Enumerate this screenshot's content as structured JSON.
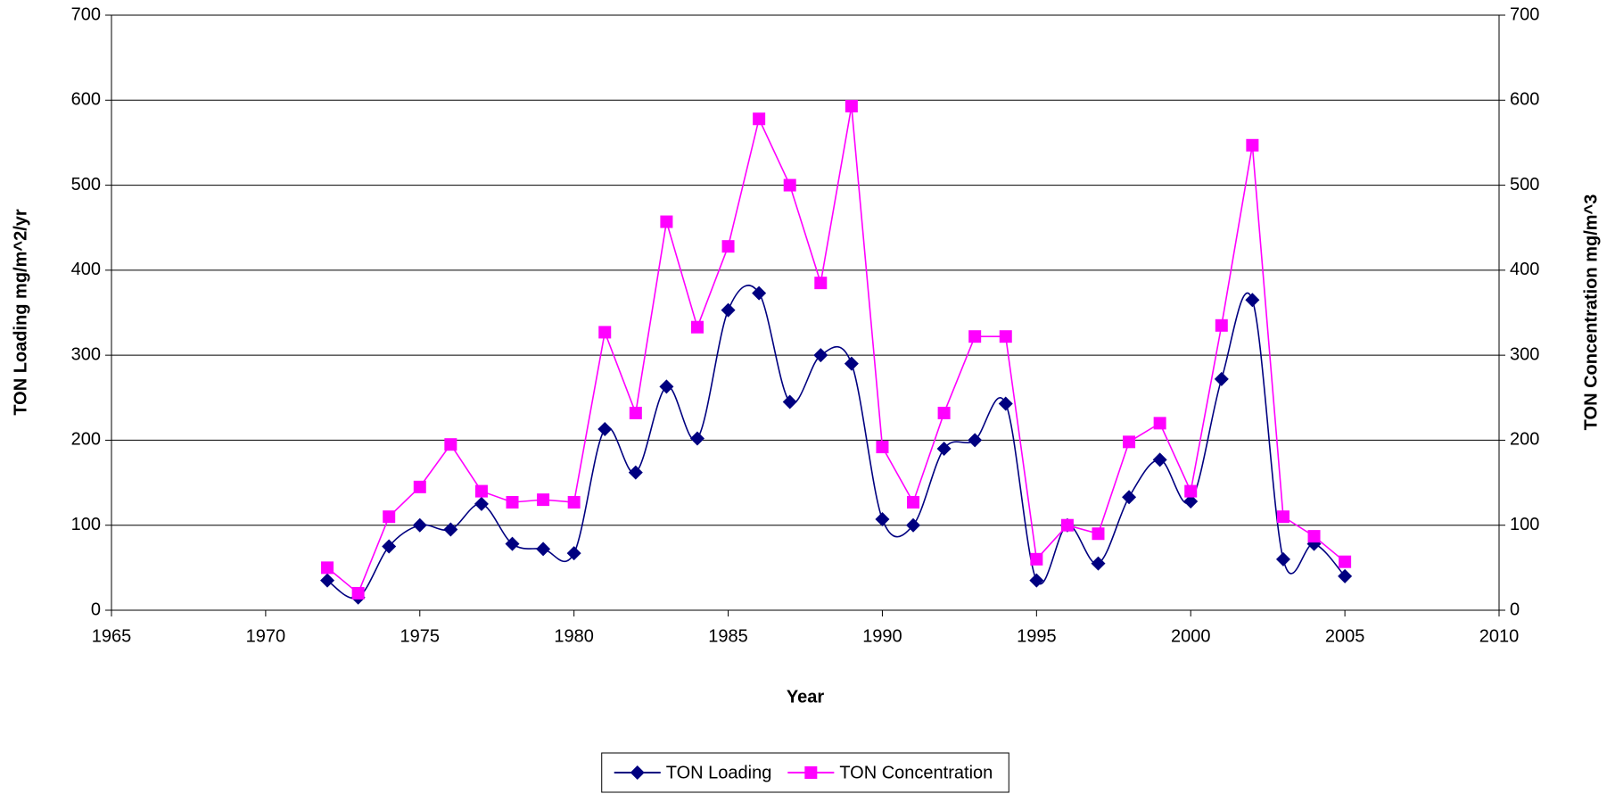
{
  "chart_data": {
    "type": "line",
    "x_label": "Year",
    "y_label": "TON Loading mg/m^2/yr",
    "y2_label": "TON Concentration mg/m^3",
    "x": [
      1972,
      1973,
      1974,
      1975,
      1976,
      1977,
      1978,
      1979,
      1980,
      1981,
      1982,
      1983,
      1984,
      1985,
      1986,
      1987,
      1988,
      1989,
      1990,
      1991,
      1992,
      1993,
      1994,
      1995,
      1996,
      1997,
      1998,
      1999,
      2000,
      2001,
      2002,
      2003,
      2004,
      2005
    ],
    "series": [
      {
        "name": "TON Loading",
        "color": "#000080",
        "marker": "diamond",
        "smooth": true,
        "values": [
          35,
          15,
          75,
          100,
          95,
          125,
          78,
          72,
          67,
          213,
          162,
          263,
          202,
          353,
          373,
          245,
          300,
          290,
          107,
          100,
          190,
          200,
          243,
          35,
          100,
          55,
          133,
          177,
          128,
          272,
          365,
          60,
          78,
          40
        ]
      },
      {
        "name": "TON Concentration",
        "color": "#ff00ff",
        "marker": "square",
        "axis": "y2",
        "values": [
          50,
          20,
          110,
          145,
          195,
          140,
          127,
          130,
          127,
          327,
          232,
          457,
          333,
          428,
          578,
          500,
          385,
          593,
          192,
          127,
          232,
          322,
          322,
          60,
          100,
          90,
          198,
          220,
          140,
          335,
          547,
          110,
          87,
          57
        ]
      }
    ],
    "xlim": [
      1965,
      2010
    ],
    "xticks": [
      1965,
      1970,
      1975,
      1980,
      1985,
      1990,
      1995,
      2000,
      2005,
      2010
    ],
    "ylim": [
      0,
      700
    ],
    "yticks": [
      0,
      100,
      200,
      300,
      400,
      500,
      600,
      700
    ],
    "y2lim": [
      0,
      700
    ],
    "y2ticks": [
      0,
      100,
      200,
      300,
      400,
      500,
      600,
      700
    ],
    "grid": true,
    "legend": "bottom"
  }
}
